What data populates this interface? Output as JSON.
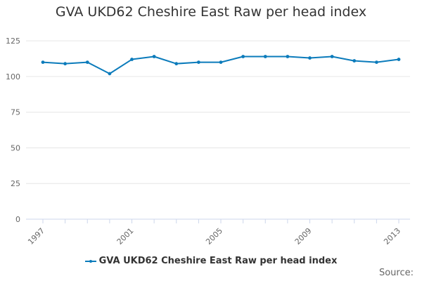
{
  "chart_data": {
    "type": "line",
    "title": "GVA UKD62 Cheshire East Raw per head index",
    "x": [
      1997,
      1998,
      1999,
      2000,
      2001,
      2002,
      2003,
      2004,
      2005,
      2006,
      2007,
      2008,
      2009,
      2010,
      2011,
      2012,
      2013
    ],
    "x_tick_labels": [
      "1997",
      "2001",
      "2005",
      "2009",
      "2013"
    ],
    "y_tick_labels": [
      "0",
      "25",
      "50",
      "75",
      "100",
      "125"
    ],
    "ylim": [
      0,
      130
    ],
    "grid": true,
    "legend_position": "bottom-center",
    "series": [
      {
        "name": "GVA UKD62 Cheshire East Raw per head index",
        "color": "#0b7bbb",
        "values": [
          110,
          109,
          110,
          102,
          112,
          114,
          109,
          110,
          110,
          114,
          114,
          114,
          113,
          114,
          111,
          110,
          112
        ]
      }
    ]
  },
  "credit": "Source:"
}
